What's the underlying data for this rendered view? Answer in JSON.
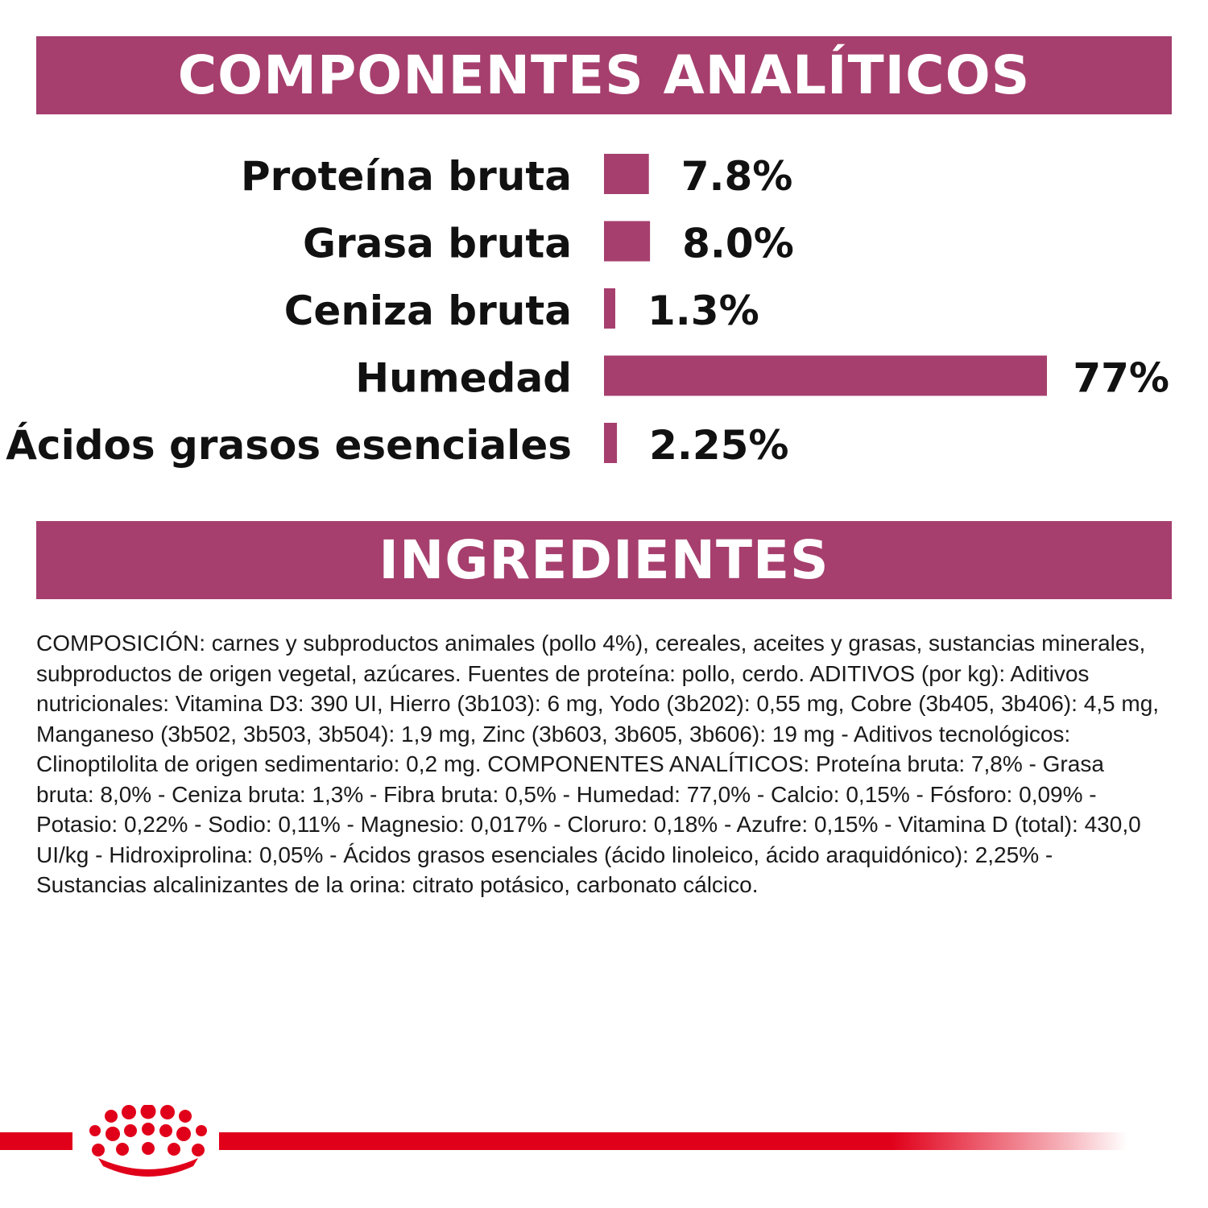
{
  "headers": {
    "analytics": "COMPONENTES ANALÍTICOS",
    "ingredients": "INGREDIENTES"
  },
  "colors": {
    "banner": "#a63f6e",
    "bar": "#a63f6e",
    "brand_red": "#e1001a"
  },
  "chart_data": {
    "type": "bar",
    "orientation": "horizontal",
    "categories": [
      "Proteína bruta",
      "Grasa bruta",
      "Ceniza bruta",
      "Humedad",
      "Ácidos grasos esenciales"
    ],
    "values": [
      7.8,
      8.0,
      1.3,
      77,
      2.25
    ],
    "value_labels": [
      "7.8%",
      "8.0%",
      "1.3%",
      "77%",
      "2.25%"
    ],
    "title": "",
    "xlabel": "",
    "ylabel": "",
    "xlim": [
      0,
      77
    ],
    "grid": false,
    "legend": "none"
  },
  "ingredients": {
    "text": "COMPOSICIÓN: carnes y subproductos animales (pollo 4%), cereales, aceites y grasas, sustancias minerales, subproductos de origen vegetal, azúcares. Fuentes de proteína: pollo, cerdo. ADITIVOS (por kg): Aditivos nutricionales: Vitamina D3: 390 UI, Hierro (3b103): 6 mg, Yodo (3b202): 0,55 mg, Cobre (3b405, 3b406): 4,5 mg, Manganeso (3b502, 3b503, 3b504): 1,9 mg, Zinc (3b603, 3b605, 3b606): 19 mg - Aditivos tecnológicos: Clinoptilolita de origen sedimentario: 0,2 mg. COMPONENTES ANALÍTICOS: Proteína bruta: 7,8% - Grasa bruta: 8,0% - Ceniza bruta: 1,3% - Fibra bruta: 0,5% - Humedad: 77,0% - Calcio: 0,15% - Fósforo: 0,09% - Potasio: 0,22% - Sodio: 0,11% - Magnesio: 0,017% - Cloruro: 0,18% - Azufre: 0,15% - Vitamina D (total): 430,0 UI/kg - Hidroxiprolina: 0,05% - Ácidos grasos esenciales (ácido linoleico, ácido araquidónico): 2,25% - Sustancias alcalinizantes de la orina: citrato potásico, carbonato cálcico."
  },
  "footer": {
    "logo_icon": "royal-canin-crown-icon"
  }
}
